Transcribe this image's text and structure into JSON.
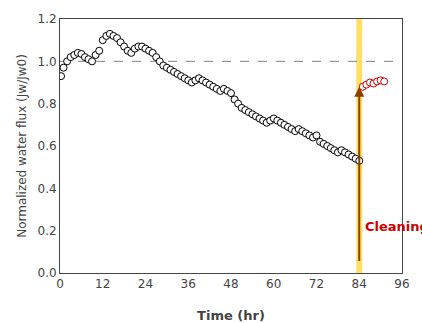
{
  "chart_data": {
    "type": "scatter",
    "xlabel": "Time (hr)",
    "ylabel": "Normalized water flux (Jw/Jw0)",
    "xlim": [
      0,
      96
    ],
    "ylim": [
      0.0,
      1.2
    ],
    "xticks": [
      0,
      12,
      24,
      36,
      48,
      60,
      72,
      84,
      96
    ],
    "yticks": [
      0.0,
      0.2,
      0.4,
      0.6,
      0.8,
      1.0,
      1.2
    ],
    "grid": false,
    "series": [
      {
        "color": "black",
        "marker": "open_circle",
        "x": [
          0.3,
          1,
          2,
          3,
          4,
          5,
          6,
          7,
          8,
          9,
          10,
          11,
          12,
          13,
          14,
          15,
          16,
          17,
          18,
          19,
          20,
          21,
          22,
          23,
          24,
          25,
          26,
          27,
          28,
          29,
          30,
          31,
          32,
          33,
          34,
          35,
          36,
          37,
          38,
          39,
          40,
          41,
          42,
          43,
          44,
          45,
          46,
          47,
          48,
          49,
          50,
          51,
          52,
          53,
          54,
          55,
          56,
          57,
          58,
          59,
          60,
          61,
          62,
          63,
          64,
          65,
          66,
          67,
          68,
          69,
          70,
          71,
          72,
          73,
          74,
          75,
          76,
          77,
          78,
          79,
          80,
          81,
          82,
          83,
          84
        ],
        "values": [
          0.93,
          0.97,
          1.0,
          1.02,
          1.03,
          1.04,
          1.035,
          1.02,
          1.01,
          1.0,
          1.03,
          1.05,
          1.1,
          1.12,
          1.13,
          1.12,
          1.11,
          1.09,
          1.07,
          1.05,
          1.04,
          1.06,
          1.07,
          1.07,
          1.06,
          1.05,
          1.04,
          1.02,
          1.0,
          0.98,
          0.97,
          0.96,
          0.95,
          0.94,
          0.93,
          0.92,
          0.91,
          0.9,
          0.91,
          0.92,
          0.91,
          0.9,
          0.89,
          0.88,
          0.87,
          0.86,
          0.87,
          0.86,
          0.85,
          0.82,
          0.8,
          0.78,
          0.77,
          0.76,
          0.75,
          0.74,
          0.73,
          0.72,
          0.71,
          0.72,
          0.73,
          0.72,
          0.71,
          0.7,
          0.69,
          0.68,
          0.67,
          0.68,
          0.67,
          0.66,
          0.65,
          0.64,
          0.65,
          0.62,
          0.61,
          0.6,
          0.59,
          0.58,
          0.57,
          0.58,
          0.57,
          0.56,
          0.55,
          0.54,
          0.53
        ]
      },
      {
        "color": "#CC0000",
        "marker": "open_circle",
        "x": [
          85,
          86,
          87,
          88,
          89,
          90,
          91
        ],
        "values": [
          0.88,
          0.89,
          0.9,
          0.895,
          0.905,
          0.91,
          0.905
        ]
      }
    ],
    "hlines": [
      {
        "y": 1.0,
        "color": "gray",
        "line_style": "dashed"
      }
    ],
    "vlines": [
      {
        "x": 84,
        "color": "#FFE066"
      }
    ],
    "arrows": [
      {
        "x": 84,
        "y_start": 0.05,
        "y_end": 0.88,
        "color": "#8B4000"
      }
    ],
    "annotations": [
      {
        "text": "Cleaning",
        "x": 85,
        "y": 0.22,
        "color": "#CC0000"
      }
    ]
  }
}
